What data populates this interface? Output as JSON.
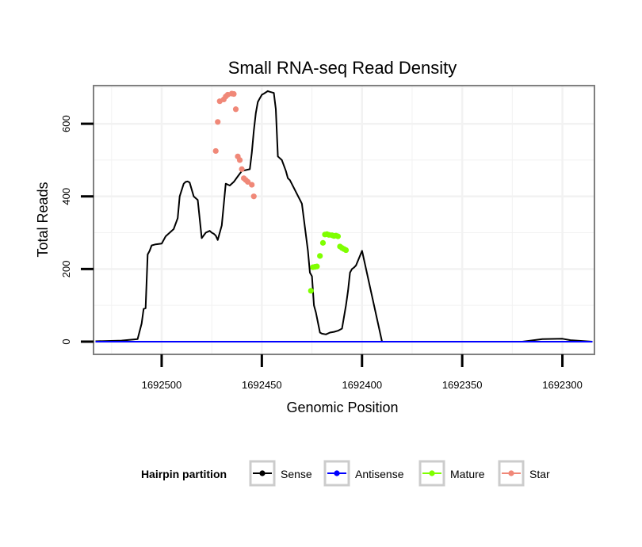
{
  "chart_data": {
    "type": "line",
    "title": "Small RNA-seq Read Density",
    "xlabel": "Genomic Position",
    "ylabel": "Total Reads",
    "xlim": [
      1692534,
      1692284
    ],
    "ylim": [
      -35,
      705
    ],
    "x_reversed": true,
    "grid": true,
    "x_ticks": [
      1692500,
      1692450,
      1692400,
      1692350,
      1692300
    ],
    "x_tick_labels": [
      "1692500",
      "1692450",
      "1692400",
      "1692350",
      "1692300"
    ],
    "y_ticks": [
      0,
      200,
      400,
      600
    ],
    "y_tick_labels": [
      "0",
      "200",
      "400",
      "600"
    ],
    "colors": {
      "sense": "#000000",
      "antisense": "#0000ff",
      "mature": "#7fff00",
      "star": "#f08878",
      "panel_border": "#7f7f7f",
      "grid": "#f2f2f2"
    },
    "legend": {
      "title": "Hairpin partition",
      "position": "bottom",
      "entries": [
        "Sense",
        "Antisense",
        "Mature",
        "Star"
      ]
    },
    "series": [
      {
        "name": "Sense",
        "kind": "line",
        "x": [
          1692533,
          1692520,
          1692512,
          1692510,
          1692509,
          1692508,
          1692507,
          1692506,
          1692505,
          1692503,
          1692500,
          1692498,
          1692496,
          1692494,
          1692492,
          1692491,
          1692489,
          1692488,
          1692487,
          1692486,
          1692484,
          1692482,
          1692480,
          1692478,
          1692476,
          1692475,
          1692474,
          1692473,
          1692472,
          1692470,
          1692468,
          1692466,
          1692464,
          1692462,
          1692460,
          1692456,
          1692455,
          1692454,
          1692453,
          1692452,
          1692451,
          1692450,
          1692449,
          1692447,
          1692446,
          1692444,
          1692443,
          1692442,
          1692440,
          1692438,
          1692437,
          1692436,
          1692430,
          1692427,
          1692426,
          1692425,
          1692424,
          1692423,
          1692421,
          1692420,
          1692418,
          1692416,
          1692414,
          1692412,
          1692410,
          1692408,
          1692407,
          1692406,
          1692405,
          1692404,
          1692403,
          1692400,
          1692390,
          1692380,
          1692360,
          1692350,
          1692330,
          1692320,
          1692310,
          1692300,
          1692296,
          1692285
        ],
        "y": [
          1,
          3,
          7,
          50,
          90,
          92,
          240,
          250,
          265,
          268,
          270,
          290,
          300,
          310,
          340,
          400,
          435,
          440,
          441,
          438,
          400,
          390,
          285,
          300,
          305,
          300,
          297,
          292,
          280,
          320,
          435,
          430,
          440,
          455,
          470,
          475,
          520,
          580,
          630,
          660,
          670,
          680,
          683,
          690,
          688,
          685,
          640,
          510,
          500,
          470,
          450,
          445,
          380,
          250,
          190,
          180,
          100,
          80,
          25,
          22,
          20,
          25,
          27,
          30,
          36,
          100,
          140,
          190,
          200,
          204,
          210,
          250,
          0,
          0,
          0,
          0,
          0,
          0,
          7,
          8,
          4,
          0
        ]
      },
      {
        "name": "Antisense",
        "kind": "line",
        "x": [
          1692533,
          1692285
        ],
        "y": [
          0,
          0
        ]
      },
      {
        "name": "Mature",
        "kind": "points",
        "x": [
          1692425.5,
          1692424.5,
          1692423.5,
          1692422.5,
          1692421,
          1692419.5,
          1692418.5,
          1692417.5,
          1692416.5,
          1692415,
          1692414,
          1692413,
          1692412,
          1692411,
          1692410,
          1692409,
          1692408
        ],
        "y": [
          140,
          205,
          206,
          207,
          236,
          272,
          295,
          296,
          294,
          293,
          291,
          292,
          290,
          262,
          258,
          255,
          252
        ]
      },
      {
        "name": "Star",
        "kind": "points",
        "x": [
          1692473,
          1692472,
          1692471,
          1692469,
          1692468,
          1692467,
          1692465,
          1692464,
          1692463,
          1692462,
          1692461,
          1692460,
          1692459,
          1692458,
          1692457,
          1692455,
          1692454
        ],
        "y": [
          525,
          605,
          662,
          667,
          675,
          680,
          683,
          682,
          640,
          510,
          500,
          475,
          450,
          445,
          440,
          432,
          400
        ]
      }
    ]
  }
}
